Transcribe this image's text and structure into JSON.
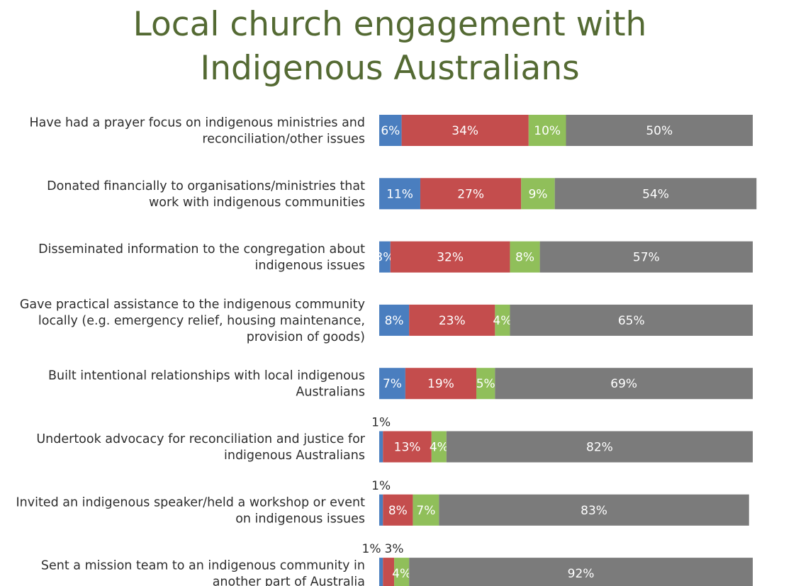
{
  "chart_data": {
    "type": "bar",
    "orientation": "horizontal",
    "stacked": true,
    "title_lines": [
      "Local church engagement with",
      "Indigenous Australians"
    ],
    "xlim": [
      0,
      100
    ],
    "colors": [
      "#4a7ebf",
      "#c44d4d",
      "#90bf5a",
      "#7b7b7b"
    ],
    "categories": [
      {
        "lines": [
          "Have had a prayer focus on indigenous ministries and",
          "reconciliation/other issues"
        ],
        "values": [
          6,
          34,
          10,
          50
        ]
      },
      {
        "lines": [
          "Donated financially to organisations/ministries that",
          "work with indigenous communities"
        ],
        "values": [
          11,
          27,
          9,
          54
        ]
      },
      {
        "lines": [
          "Disseminated information to the congregation about",
          "indigenous issues"
        ],
        "values": [
          3,
          32,
          8,
          57
        ]
      },
      {
        "lines": [
          "Gave practical assistance to the indigenous community",
          "locally (e.g. emergency relief, housing maintenance,",
          "provision of goods)"
        ],
        "values": [
          8,
          23,
          4,
          65
        ]
      },
      {
        "lines": [
          "Built intentional relationships with local indigenous",
          "Australians"
        ],
        "values": [
          7,
          19,
          5,
          69
        ]
      },
      {
        "lines": [
          "Undertook advocacy for reconciliation and justice for",
          "indigenous Australians"
        ],
        "values": [
          1,
          13,
          4,
          82
        ]
      },
      {
        "lines": [
          "Invited an indigenous speaker/held a workshop or event",
          "on indigenous issues"
        ],
        "values": [
          1,
          8,
          7,
          83
        ]
      },
      {
        "lines": [
          "Sent a mission team to an indigenous community in",
          "another part of Australia"
        ],
        "values": [
          1,
          3,
          4,
          92
        ]
      }
    ]
  }
}
